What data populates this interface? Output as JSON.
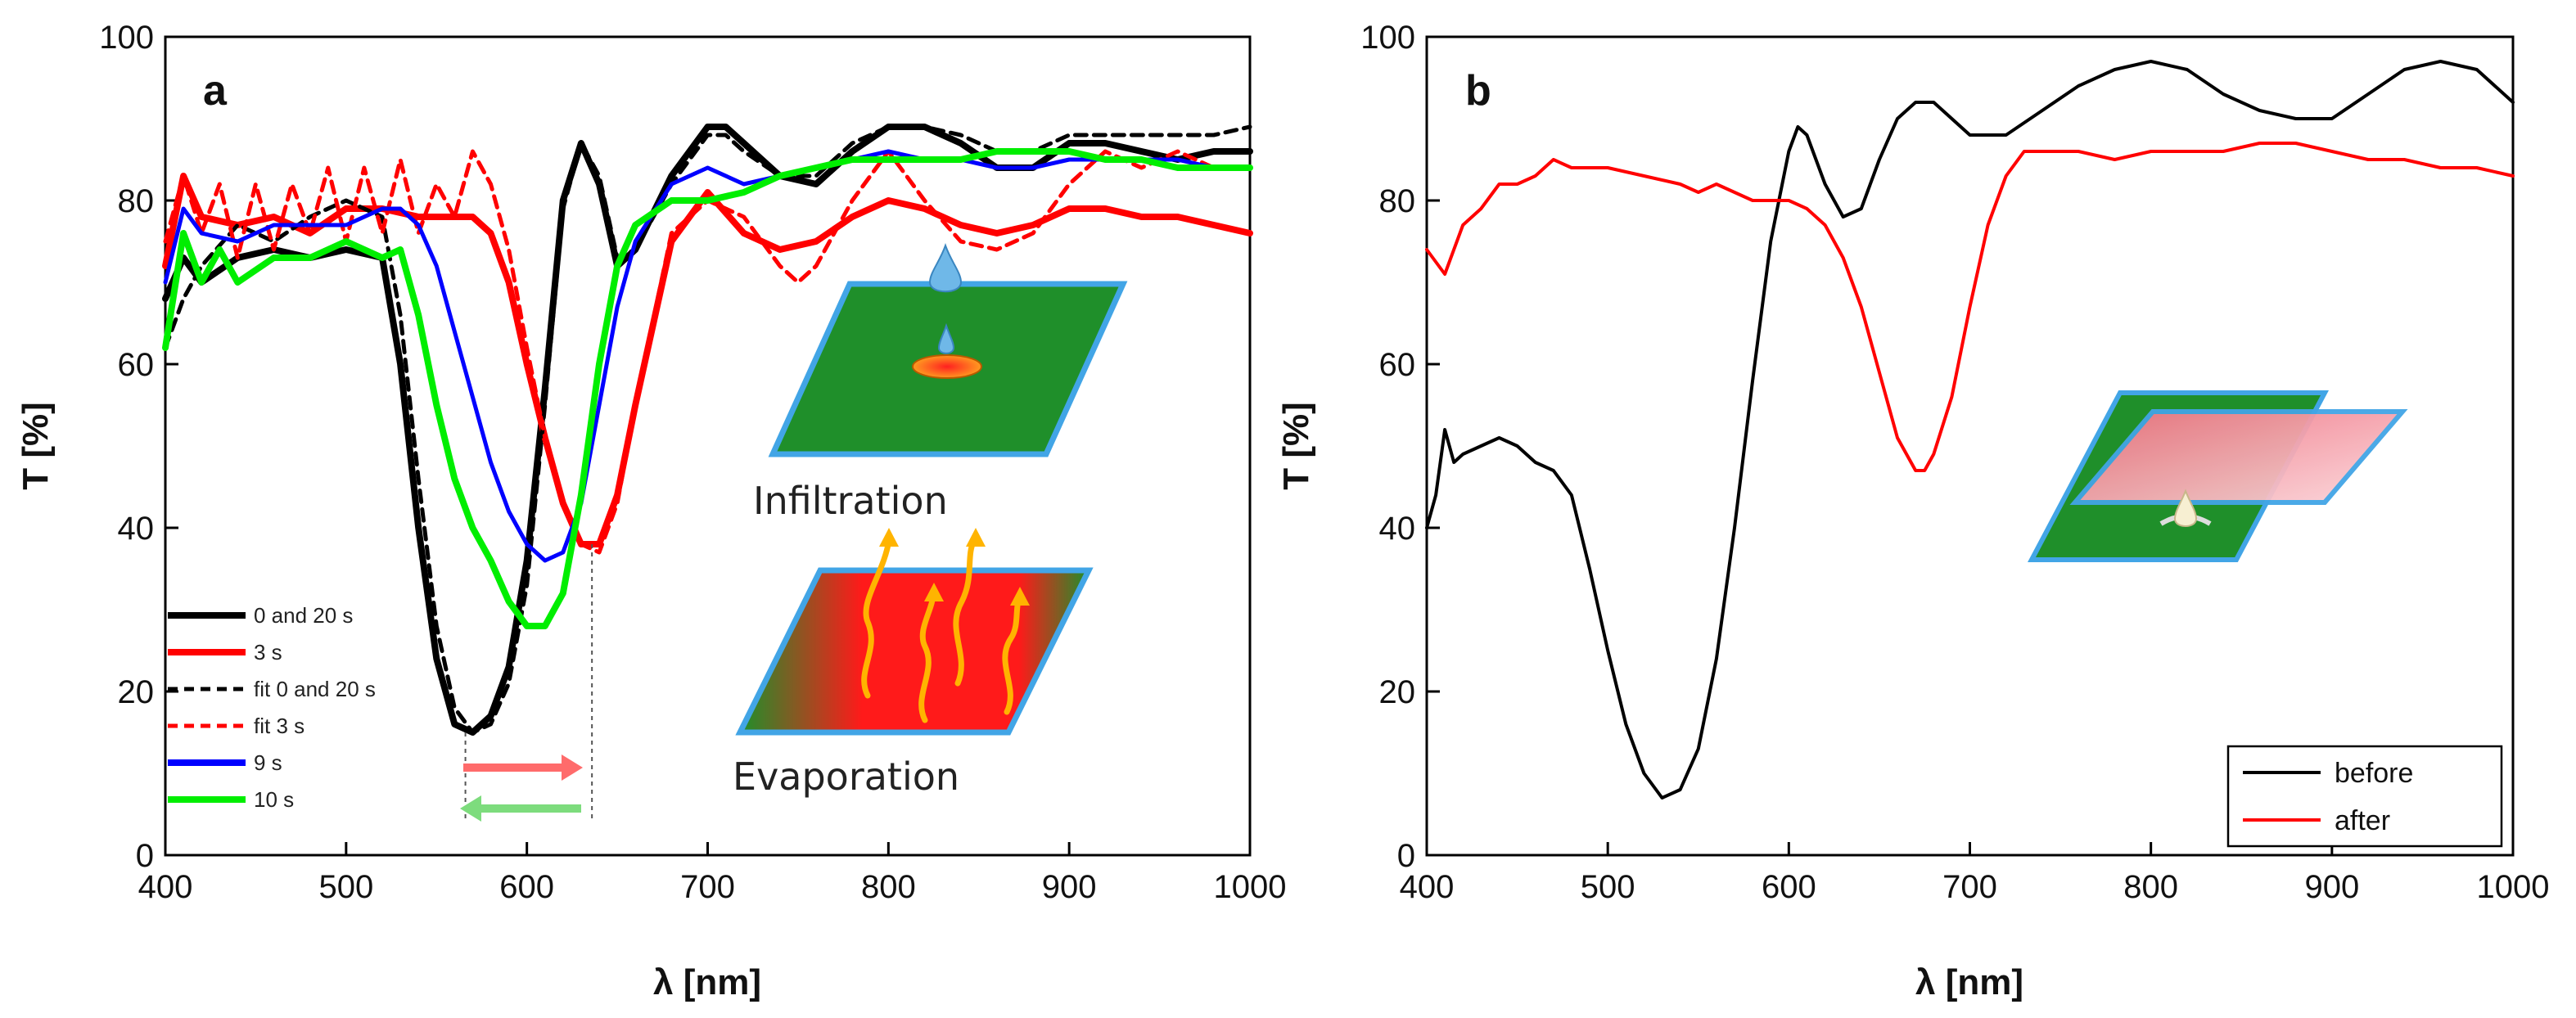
{
  "chart_data": [
    {
      "panel": "a",
      "type": "line",
      "xlabel": "λ [nm]",
      "ylabel": "T [%]",
      "xlim": [
        400,
        1000
      ],
      "ylim": [
        0,
        100
      ],
      "xticks": [
        400,
        500,
        600,
        700,
        800,
        900,
        1000
      ],
      "yticks": [
        0,
        20,
        40,
        60,
        80,
        100
      ],
      "series": [
        {
          "name": "0 and 20 s",
          "color": "#000000",
          "style": "solid",
          "x": [
            400,
            410,
            420,
            440,
            460,
            480,
            500,
            520,
            530,
            540,
            550,
            560,
            570,
            580,
            590,
            600,
            610,
            620,
            630,
            640,
            650,
            660,
            680,
            700,
            710,
            720,
            740,
            760,
            780,
            800,
            820,
            840,
            860,
            880,
            900,
            920,
            940,
            960,
            980,
            1000
          ],
          "y": [
            68,
            73,
            70,
            73,
            74,
            73,
            74,
            73,
            60,
            40,
            24,
            16,
            15,
            17,
            23,
            36,
            57,
            80,
            87,
            82,
            72,
            74,
            83,
            89,
            89,
            87,
            83,
            82,
            86,
            89,
            89,
            87,
            84,
            84,
            87,
            87,
            86,
            85,
            86,
            86
          ]
        },
        {
          "name": "3 s",
          "color": "#ff0000",
          "style": "solid",
          "x": [
            400,
            410,
            420,
            440,
            460,
            480,
            500,
            520,
            540,
            560,
            570,
            580,
            590,
            600,
            610,
            620,
            630,
            640,
            650,
            660,
            680,
            700,
            720,
            740,
            760,
            780,
            800,
            820,
            840,
            860,
            880,
            900,
            920,
            940,
            960,
            980,
            1000
          ],
          "y": [
            72,
            83,
            78,
            77,
            78,
            76,
            79,
            79,
            78,
            78,
            78,
            76,
            70,
            60,
            51,
            43,
            38,
            38,
            44,
            55,
            75,
            81,
            76,
            74,
            75,
            78,
            80,
            79,
            77,
            76,
            77,
            79,
            79,
            78,
            78,
            77,
            76
          ]
        },
        {
          "name": "fit 0 and 20 s",
          "color": "#000000",
          "style": "dashed",
          "x": [
            400,
            410,
            420,
            440,
            460,
            480,
            500,
            520,
            530,
            540,
            550,
            560,
            570,
            580,
            590,
            600,
            610,
            620,
            630,
            640,
            650,
            660,
            680,
            700,
            710,
            720,
            740,
            760,
            780,
            800,
            820,
            840,
            860,
            880,
            900,
            920,
            940,
            960,
            980,
            1000
          ],
          "y": [
            62,
            68,
            72,
            77,
            75,
            78,
            80,
            78,
            66,
            46,
            28,
            18,
            15,
            16,
            21,
            33,
            55,
            79,
            87,
            83,
            73,
            74,
            82,
            88,
            88,
            86,
            83,
            83,
            87,
            89,
            89,
            88,
            86,
            86,
            88,
            88,
            88,
            88,
            88,
            89
          ]
        },
        {
          "name": "fit 3 s",
          "color": "#ff0000",
          "style": "dashed",
          "x": [
            400,
            410,
            420,
            430,
            440,
            450,
            460,
            470,
            480,
            490,
            500,
            510,
            520,
            530,
            540,
            550,
            560,
            570,
            580,
            590,
            600,
            610,
            620,
            630,
            640,
            650,
            660,
            680,
            700,
            720,
            740,
            750,
            760,
            780,
            800,
            820,
            840,
            860,
            880,
            900,
            920,
            940,
            960,
            980,
            1000
          ],
          "y": [
            75,
            83,
            76,
            82,
            73,
            82,
            74,
            82,
            76,
            84,
            75,
            84,
            76,
            85,
            76,
            82,
            78,
            86,
            82,
            74,
            62,
            51,
            43,
            38,
            37,
            43,
            55,
            76,
            80,
            78,
            72,
            70,
            72,
            80,
            86,
            80,
            75,
            74,
            76,
            82,
            86,
            84,
            86,
            84,
            84
          ]
        },
        {
          "name": "9 s",
          "color": "#0000ff",
          "style": "solid",
          "x": [
            400,
            410,
            420,
            440,
            460,
            480,
            500,
            520,
            530,
            540,
            550,
            560,
            570,
            580,
            590,
            600,
            610,
            620,
            630,
            640,
            650,
            660,
            680,
            700,
            720,
            740,
            760,
            780,
            800,
            820,
            840,
            860,
            880,
            900,
            920,
            940,
            960,
            980,
            1000
          ],
          "y": [
            70,
            79,
            76,
            75,
            77,
            77,
            77,
            79,
            79,
            77,
            72,
            64,
            56,
            48,
            42,
            38,
            36,
            37,
            43,
            55,
            67,
            75,
            82,
            84,
            82,
            83,
            84,
            85,
            86,
            85,
            85,
            84,
            84,
            85,
            85,
            85,
            85,
            84,
            84
          ]
        },
        {
          "name": "10 s",
          "color": "#00ee00",
          "style": "solid",
          "x": [
            400,
            410,
            420,
            430,
            440,
            460,
            480,
            500,
            510,
            520,
            530,
            540,
            550,
            560,
            570,
            580,
            590,
            600,
            610,
            620,
            630,
            640,
            650,
            660,
            680,
            700,
            720,
            740,
            760,
            780,
            800,
            820,
            840,
            860,
            880,
            900,
            920,
            940,
            960,
            980,
            1000
          ],
          "y": [
            62,
            76,
            70,
            74,
            70,
            73,
            73,
            75,
            74,
            73,
            74,
            66,
            55,
            46,
            40,
            36,
            31,
            28,
            28,
            32,
            44,
            60,
            72,
            77,
            80,
            80,
            81,
            83,
            84,
            85,
            85,
            85,
            85,
            86,
            86,
            86,
            85,
            85,
            84,
            84,
            84
          ]
        }
      ],
      "legend_location": "lower-left",
      "annotation_lines_nm": [
        566,
        636
      ],
      "inset_labels": [
        "Infiltration",
        "Evaporation"
      ]
    },
    {
      "panel": "b",
      "type": "line",
      "xlabel": "λ [nm]",
      "ylabel": "T [%]",
      "xlim": [
        400,
        1000
      ],
      "ylim": [
        0,
        100
      ],
      "xticks": [
        400,
        500,
        600,
        700,
        800,
        900,
        1000
      ],
      "yticks": [
        0,
        20,
        40,
        60,
        80,
        100
      ],
      "series": [
        {
          "name": "before",
          "color": "#000000",
          "style": "solid",
          "x": [
            400,
            405,
            410,
            415,
            420,
            430,
            440,
            450,
            460,
            470,
            480,
            490,
            500,
            510,
            520,
            530,
            540,
            550,
            560,
            570,
            580,
            590,
            600,
            605,
            610,
            620,
            630,
            640,
            650,
            660,
            670,
            680,
            690,
            700,
            720,
            740,
            760,
            780,
            800,
            820,
            840,
            860,
            880,
            900,
            920,
            940,
            960,
            980,
            1000
          ],
          "y": [
            40,
            44,
            52,
            48,
            49,
            50,
            51,
            50,
            48,
            47,
            44,
            35,
            25,
            16,
            10,
            7,
            8,
            13,
            24,
            40,
            58,
            75,
            86,
            89,
            88,
            82,
            78,
            79,
            85,
            90,
            92,
            92,
            90,
            88,
            88,
            91,
            94,
            96,
            97,
            96,
            93,
            91,
            90,
            90,
            93,
            96,
            97,
            96,
            92
          ]
        },
        {
          "name": "after",
          "color": "#ff0000",
          "style": "solid",
          "x": [
            400,
            410,
            420,
            430,
            440,
            450,
            460,
            470,
            480,
            500,
            520,
            540,
            550,
            560,
            570,
            580,
            590,
            600,
            610,
            620,
            630,
            640,
            650,
            660,
            670,
            675,
            680,
            690,
            700,
            710,
            720,
            730,
            740,
            760,
            780,
            800,
            820,
            840,
            860,
            880,
            900,
            920,
            940,
            960,
            980,
            1000
          ],
          "y": [
            74,
            71,
            77,
            79,
            82,
            82,
            83,
            85,
            84,
            84,
            83,
            82,
            81,
            82,
            81,
            80,
            80,
            80,
            79,
            77,
            73,
            67,
            59,
            51,
            47,
            47,
            49,
            56,
            67,
            77,
            83,
            86,
            86,
            86,
            85,
            86,
            86,
            86,
            87,
            87,
            86,
            85,
            85,
            84,
            84,
            83
          ]
        }
      ],
      "legend_location": "lower-right"
    }
  ]
}
